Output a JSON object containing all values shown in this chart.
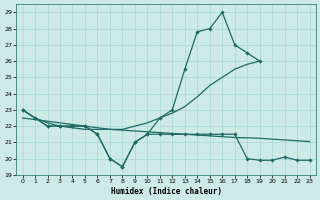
{
  "x_main": [
    0,
    1,
    2,
    3,
    4,
    5,
    6,
    7,
    8,
    9,
    10,
    11,
    12,
    13,
    14,
    15,
    16,
    17,
    18,
    19,
    20,
    21,
    22,
    23
  ],
  "line_jagged_upper": [
    23,
    22.5,
    22,
    22,
    22,
    22,
    21.5,
    20.0,
    19.5,
    21.0,
    21.5,
    22.5,
    23.0,
    25.5,
    27.8,
    28.0,
    29.0,
    27.0,
    26.5,
    26.0,
    null,
    null,
    null,
    null
  ],
  "line_jagged_lower": [
    23,
    22.5,
    22,
    22,
    22,
    22,
    21.5,
    20.0,
    19.5,
    21.0,
    21.5,
    21.5,
    21.5,
    21.5,
    21.5,
    21.5,
    21.5,
    21.5,
    20.0,
    19.9,
    19.9,
    20.1,
    19.9,
    19.9
  ],
  "line_rising": [
    23.0,
    22.5,
    22.2,
    22.0,
    21.9,
    21.8,
    21.8,
    21.8,
    21.8,
    22.0,
    22.2,
    22.5,
    22.8,
    23.2,
    23.8,
    24.5,
    25.0,
    25.5,
    25.8,
    26.0,
    null,
    null,
    null,
    null
  ],
  "line_flat": [
    22.5,
    22.4,
    22.3,
    22.2,
    22.1,
    22.0,
    21.9,
    21.8,
    21.75,
    21.7,
    21.65,
    21.6,
    21.55,
    21.5,
    21.45,
    21.4,
    21.35,
    21.3,
    21.28,
    21.25,
    21.2,
    21.15,
    21.1,
    21.05
  ],
  "background_color": "#cdeae6",
  "grid_color": "#a8d8d4",
  "line_color": "#1d6b63",
  "xlim": [
    -0.5,
    23.5
  ],
  "ylim": [
    19,
    29.5
  ],
  "yticks": [
    19,
    20,
    21,
    22,
    23,
    24,
    25,
    26,
    27,
    28,
    29
  ],
  "xticks": [
    0,
    1,
    2,
    3,
    4,
    5,
    6,
    7,
    8,
    9,
    10,
    11,
    12,
    13,
    14,
    15,
    16,
    17,
    18,
    19,
    20,
    21,
    22,
    23
  ],
  "xlabel": "Humidex (Indice chaleur)"
}
